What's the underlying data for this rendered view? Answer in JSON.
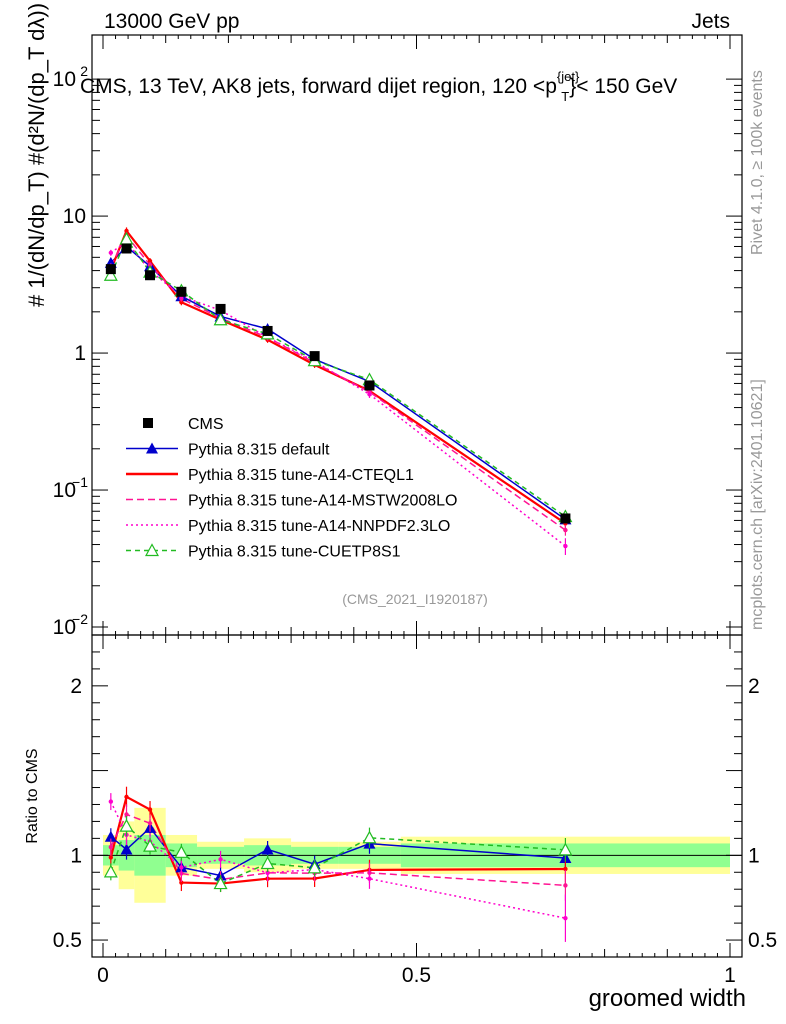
{
  "header": {
    "left": "13000 GeV pp",
    "right": "Jets"
  },
  "sidebar": {
    "rivet": "Rivet 4.1.0, ≥ 100k events",
    "mcplots": "mcplots.cern.ch [arXiv:2401.10621]"
  },
  "chart_data": {
    "type": "line",
    "title_main": "CMS, 13 TeV, AK8 jets, forward dijet region, 120 <p",
    "title_sup": "{jet}",
    "title_sub": "T",
    "title_end": "}< 150 GeV",
    "analysis_id": "(CMS_2021_I1920187)",
    "xlabel": "groomed width",
    "ylabel_top": "# 1/(dN/dp_T) #(d²N/(dp_T dλ))",
    "ylabel_ratio": "Ratio to CMS",
    "xlim": [
      0,
      1
    ],
    "ylim_main": [
      0.01,
      150
    ],
    "ylim_ratio": [
      0.4,
      2.3
    ],
    "x_ticks": [
      {
        "v": 0,
        "label": "0"
      },
      {
        "v": 0.5,
        "label": "0.5"
      },
      {
        "v": 1,
        "label": "1"
      }
    ],
    "y_ticks_main": [
      {
        "v": 0.01,
        "base": "10",
        "exp": "−2"
      },
      {
        "v": 0.1,
        "base": "10",
        "exp": "−1"
      },
      {
        "v": 1,
        "base": "1",
        "exp": ""
      },
      {
        "v": 10,
        "base": "10",
        "exp": ""
      },
      {
        "v": 100,
        "base": "10",
        "exp": "2"
      }
    ],
    "y_ticks_ratio": [
      {
        "v": 0.5,
        "label": "0.5"
      },
      {
        "v": 1,
        "label": "1"
      },
      {
        "v": 2,
        "label": "2"
      }
    ],
    "bin_edges": [
      0,
      0.025,
      0.05,
      0.1,
      0.15,
      0.225,
      0.3,
      0.375,
      0.475,
      1.0
    ],
    "x": [
      0.0125,
      0.0375,
      0.075,
      0.125,
      0.1875,
      0.2625,
      0.3375,
      0.425,
      0.7375
    ],
    "data": {
      "name": "CMS",
      "values": [
        4.1,
        5.8,
        3.7,
        2.8,
        2.1,
        1.45,
        0.95,
        0.58,
        0.062
      ],
      "band_inner": [
        0.06,
        0.09,
        0.12,
        0.07,
        0.05,
        0.06,
        0.05,
        0.05,
        0.07
      ],
      "band_outer": [
        0.12,
        0.2,
        0.28,
        0.12,
        0.08,
        0.1,
        0.08,
        0.08,
        0.11
      ]
    },
    "series": [
      {
        "name": "Pythia 8.315 default",
        "color": "#0000cc",
        "dash": "",
        "marker": "triangle",
        "values": [
          4.55,
          6.0,
          4.3,
          2.6,
          1.85,
          1.5,
          0.9,
          0.62,
          0.061
        ],
        "ratio_err": [
          0.05,
          0.06,
          0.05,
          0.05,
          0.05,
          0.05,
          0.05,
          0.06,
          0.07
        ]
      },
      {
        "name": "Pythia 8.315 tune-A14-CTEQL1",
        "color": "#ff0000",
        "dash": "",
        "marker": "dot",
        "values": [
          4.05,
          7.8,
          4.7,
          2.35,
          1.75,
          1.25,
          0.82,
          0.53,
          0.057
        ],
        "ratio_err": [
          0.05,
          0.06,
          0.05,
          0.05,
          0.05,
          0.05,
          0.05,
          0.06,
          0.08
        ]
      },
      {
        "name": "Pythia 8.315 tune-A14-MSTW2008LO",
        "color": "#ff1493",
        "dash": "7,4",
        "marker": "dot",
        "values": [
          4.3,
          7.2,
          4.4,
          2.5,
          1.8,
          1.3,
          0.85,
          0.52,
          0.051
        ],
        "ratio_err": [
          0.05,
          0.06,
          0.05,
          0.05,
          0.05,
          0.05,
          0.05,
          0.06,
          0.09
        ]
      },
      {
        "name": "Pythia 8.315 tune-A14-NNPDF2.3LO",
        "color": "#ff00cc",
        "dash": "2,3",
        "marker": "dot",
        "values": [
          5.4,
          6.5,
          4.0,
          2.6,
          2.05,
          1.3,
          0.87,
          0.5,
          0.039
        ],
        "ratio_err": [
          0.05,
          0.06,
          0.05,
          0.05,
          0.05,
          0.05,
          0.05,
          0.06,
          0.14
        ]
      },
      {
        "name": "Pythia 8.315 tune-CUETP8S1",
        "color": "#22bb22",
        "dash": "5,4",
        "marker": "open-triangle",
        "values": [
          3.7,
          6.8,
          3.9,
          2.85,
          1.75,
          1.38,
          0.88,
          0.64,
          0.064
        ],
        "ratio_err": [
          0.05,
          0.06,
          0.05,
          0.05,
          0.05,
          0.05,
          0.05,
          0.06,
          0.07
        ]
      }
    ],
    "legend_position": "lower-left",
    "colors": {
      "inner_band": "#90ff90",
      "outer_band": "#ffff99"
    }
  }
}
